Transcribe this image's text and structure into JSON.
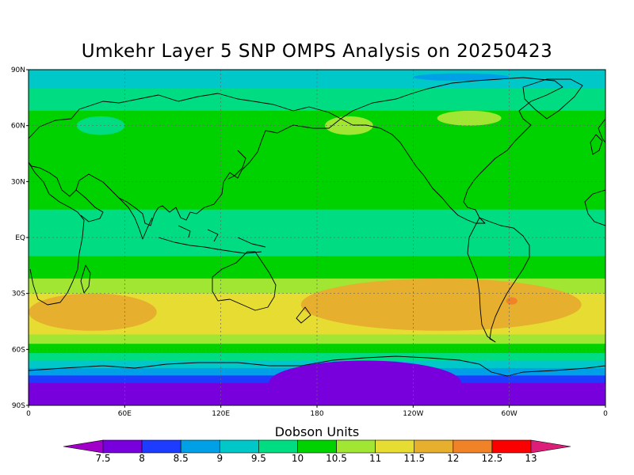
{
  "title": "Umkehr Layer 5 SNP OMPS Analysis on 20250423",
  "colorbar": {
    "title": "Dobson Units",
    "levels": [
      "7.5",
      "8",
      "8.5",
      "9",
      "9.5",
      "10",
      "10.5",
      "11",
      "11.5",
      "12",
      "12.5",
      "13"
    ],
    "colors": [
      "#a000c8",
      "#7800dc",
      "#1e3cff",
      "#00a0e6",
      "#00c8c8",
      "#00dc82",
      "#00d200",
      "#a0e632",
      "#e6dc32",
      "#e6af2d",
      "#f08228",
      "#fa0000",
      "#dc1e78"
    ]
  },
  "map_axes": {
    "lat_labels": [
      "90N",
      "60N",
      "30N",
      "EQ",
      "30S",
      "60S",
      "90S"
    ],
    "lon_labels": [
      "0",
      "60E",
      "120E",
      "180",
      "120W",
      "60W",
      "0"
    ]
  },
  "chart_data": {
    "type": "heatmap",
    "title": "Umkehr Layer 5 SNP OMPS Analysis on 20250423",
    "colorbar_label": "Dobson Units",
    "lat_range": [
      -90,
      90
    ],
    "lon_range": [
      0,
      360
    ],
    "grid": true,
    "zonal_mean_bands": [
      {
        "lat": [
          80,
          90
        ],
        "value": 9.0
      },
      {
        "lat": [
          68,
          80
        ],
        "value": 9.5
      },
      {
        "lat": [
          40,
          68
        ],
        "value": 10.0
      },
      {
        "lat": [
          15,
          40
        ],
        "value": 10.0
      },
      {
        "lat": [
          5,
          15
        ],
        "value": 9.5
      },
      {
        "lat": [
          -10,
          5
        ],
        "value": 9.5
      },
      {
        "lat": [
          -22,
          -10
        ],
        "value": 10.0
      },
      {
        "lat": [
          -30,
          -22
        ],
        "value": 10.5
      },
      {
        "lat": [
          -52,
          -30
        ],
        "value": 11.0
      },
      {
        "lat": [
          -57,
          -52
        ],
        "value": 10.5
      },
      {
        "lat": [
          -62,
          -57
        ],
        "value": 10.0
      },
      {
        "lat": [
          -66,
          -62
        ],
        "value": 9.5
      },
      {
        "lat": [
          -70,
          -66
        ],
        "value": 9.0
      },
      {
        "lat": [
          -74,
          -70
        ],
        "value": 8.5
      },
      {
        "lat": [
          -78,
          -74
        ],
        "value": 8.0
      },
      {
        "lat": [
          -90,
          -78
        ],
        "value": 7.5
      }
    ],
    "features": [
      {
        "lon": [
          240,
          300
        ],
        "lat": [
          84,
          88
        ],
        "value": 8.5
      },
      {
        "lon": [
          30,
          60
        ],
        "lat": [
          55,
          65
        ],
        "value": 9.5
      },
      {
        "lon": [
          80,
          180
        ],
        "lat": [
          30,
          60
        ],
        "value": 10.0
      },
      {
        "lon": [
          185,
          215
        ],
        "lat": [
          55,
          65
        ],
        "value": 10.5
      },
      {
        "lon": [
          255,
          295
        ],
        "lat": [
          60,
          68
        ],
        "value": 10.5
      },
      {
        "lon": [
          0,
          80
        ],
        "lat": [
          -50,
          -30
        ],
        "value": 11.5
      },
      {
        "lon": [
          170,
          345
        ],
        "lat": [
          -50,
          -22
        ],
        "value": 11.5
      },
      {
        "lon": [
          298,
          305
        ],
        "lat": [
          -36,
          -32
        ],
        "value": 12.0
      },
      {
        "lon": [
          150,
          270
        ],
        "lat": [
          -90,
          -66
        ],
        "value": 7.5
      }
    ]
  }
}
